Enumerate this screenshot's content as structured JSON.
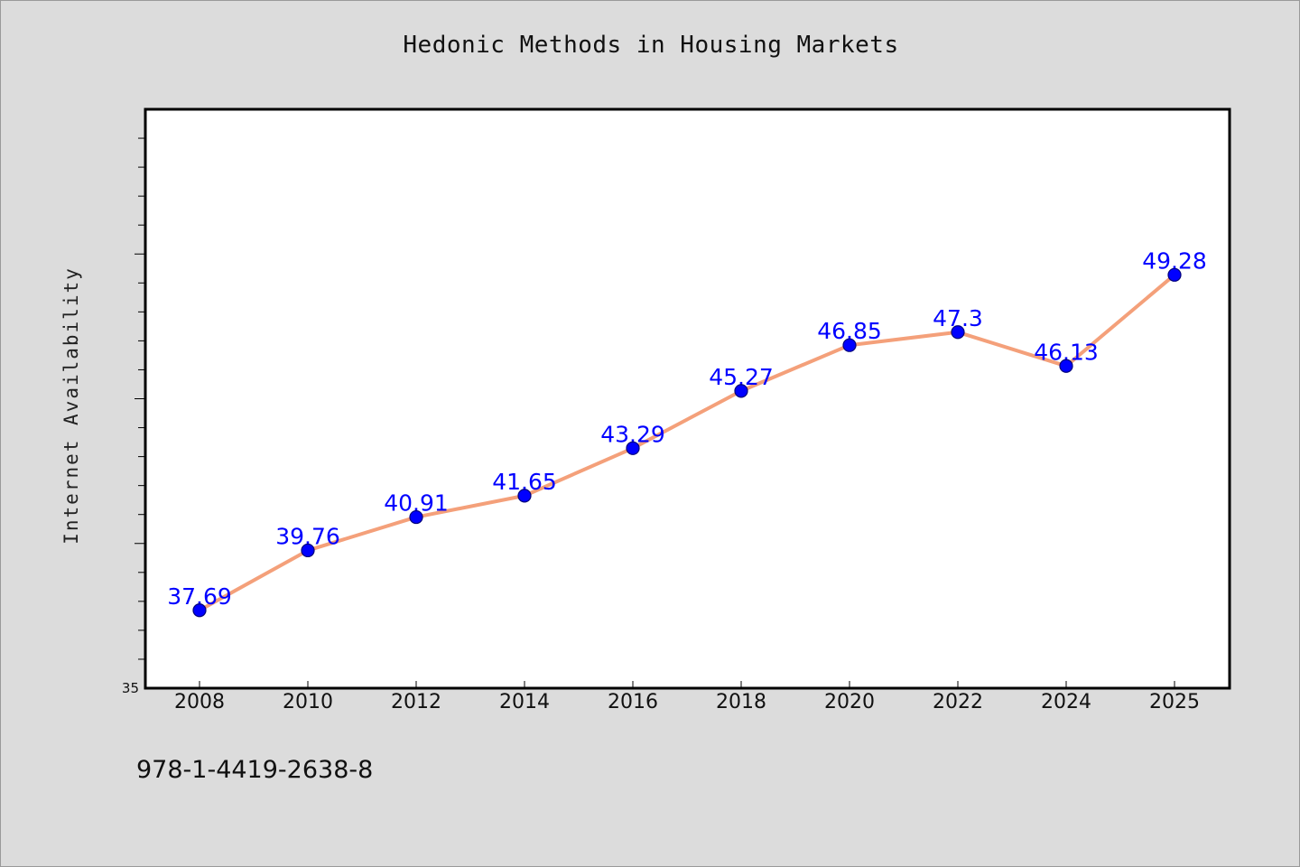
{
  "chart_data": {
    "type": "line",
    "title": "Hedonic Methods in Housing Markets",
    "xlabel": "",
    "ylabel": "Internet Availability",
    "categories": [
      "2008",
      "2010",
      "2012",
      "2014",
      "2016",
      "2018",
      "2020",
      "2022",
      "2024",
      "2025"
    ],
    "series": [
      {
        "values": [
          37.69,
          39.76,
          40.91,
          41.65,
          43.29,
          45.27,
          46.85,
          47.3,
          46.13,
          49.28
        ],
        "data_labels": [
          "37.69",
          "39.76",
          "40.91",
          "41.65",
          "43.29",
          "45.27",
          "46.85",
          "47.3",
          "46.13",
          "49.28"
        ]
      }
    ],
    "ylim": [
      35,
      55
    ],
    "ytick_labels": [
      "35"
    ],
    "grid": false,
    "legend": "none",
    "colors": {
      "line": "#f4a07a",
      "marker": "#0000ff",
      "data_label": "#0000ff",
      "plot_background": "#ffffff",
      "figure_background": "#dcdcdc"
    }
  },
  "footer_text": "978-1-4419-2638-8"
}
